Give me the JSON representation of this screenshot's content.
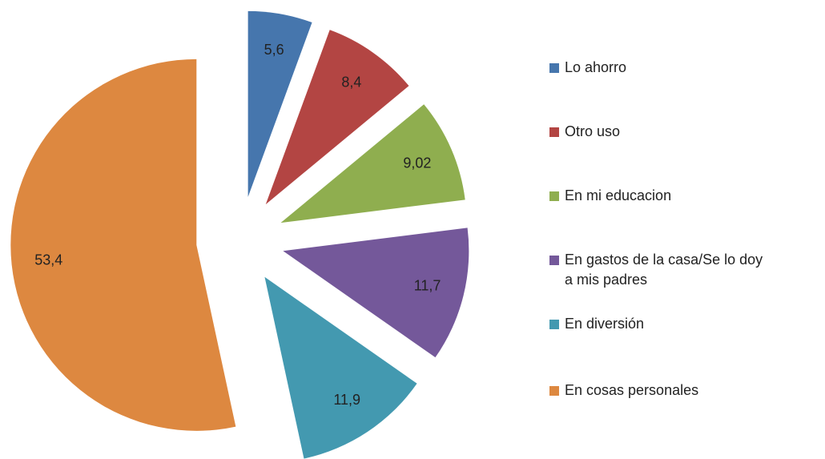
{
  "chart_data": {
    "type": "pie",
    "categories": [
      "Lo ahorro",
      "Otro uso",
      "En mi educacion",
      "En gastos de la casa/Se lo doy a mis padres",
      "En diversión",
      "En cosas personales"
    ],
    "values": [
      5.6,
      8.4,
      9.02,
      11.7,
      11.9,
      53.4
    ],
    "value_labels": [
      "5,6",
      "8,4",
      "9,02",
      "11,7",
      "11,9",
      "53,4"
    ],
    "colors": [
      "#4676ad",
      "#b34543",
      "#8fae4f",
      "#74589a",
      "#4399b0",
      "#dd8840"
    ],
    "exploded": true,
    "legend": "right"
  }
}
